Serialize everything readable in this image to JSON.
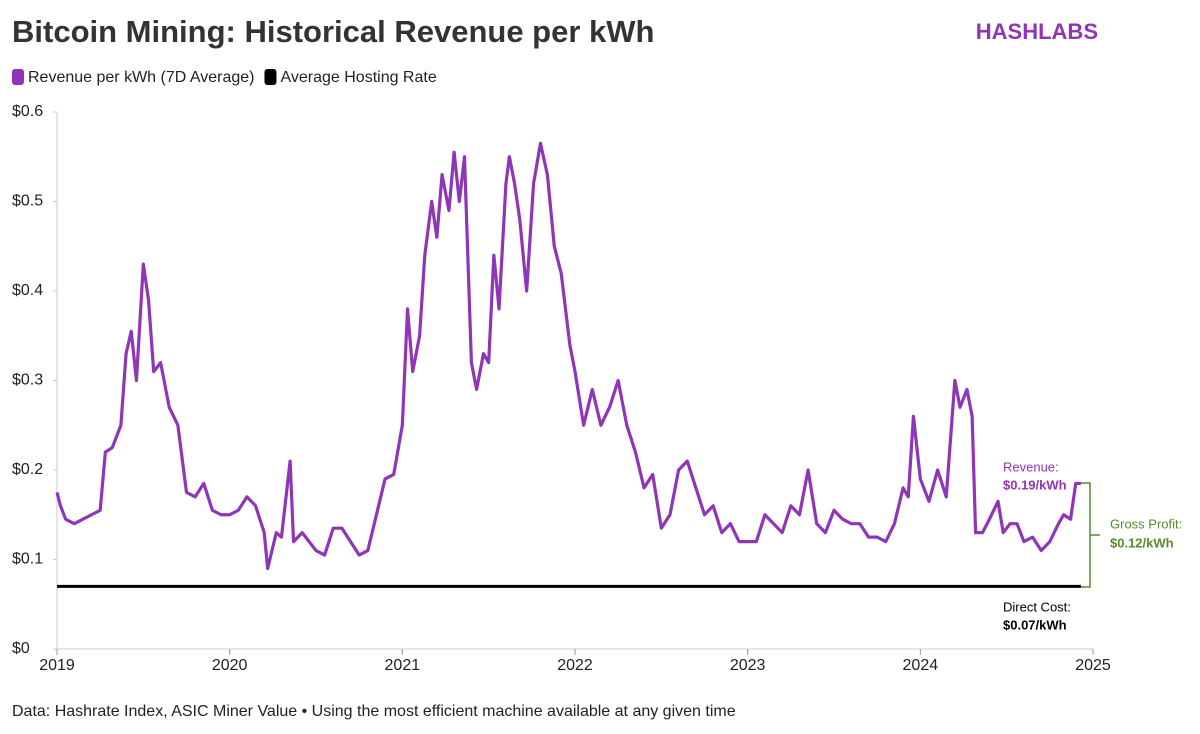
{
  "chart_data": {
    "type": "line",
    "title": "Bitcoin Mining: Historical Revenue per kWh",
    "brand": "HASHLABS",
    "source": "Data: Hashrate Index, ASIC Miner Value • Using the most efficient machine available at any given time",
    "xlim": [
      2019,
      2025
    ],
    "xticks": [
      2019,
      2020,
      2021,
      2022,
      2023,
      2024,
      2025
    ],
    "ylim": [
      0,
      0.6
    ],
    "yticks": [
      {
        "value": 0,
        "label": "$0"
      },
      {
        "value": 0.1,
        "label": "$0.1"
      },
      {
        "value": 0.2,
        "label": "$0.2"
      },
      {
        "value": 0.3,
        "label": "$0.3"
      },
      {
        "value": 0.4,
        "label": "$0.4"
      },
      {
        "value": 0.5,
        "label": "$0.5"
      },
      {
        "value": 0.6,
        "label": "$0.6"
      }
    ],
    "series": [
      {
        "name": "Revenue per kWh (7D Average)",
        "color": "#8e35b8",
        "x": [
          2019.0,
          2019.02,
          2019.05,
          2019.1,
          2019.15,
          2019.2,
          2019.25,
          2019.28,
          2019.32,
          2019.37,
          2019.4,
          2019.43,
          2019.46,
          2019.5,
          2019.53,
          2019.56,
          2019.6,
          2019.65,
          2019.7,
          2019.75,
          2019.8,
          2019.85,
          2019.9,
          2019.95,
          2020.0,
          2020.05,
          2020.1,
          2020.15,
          2020.2,
          2020.22,
          2020.27,
          2020.3,
          2020.35,
          2020.37,
          2020.42,
          2020.5,
          2020.55,
          2020.6,
          2020.65,
          2020.7,
          2020.75,
          2020.8,
          2020.85,
          2020.9,
          2020.95,
          2021.0,
          2021.03,
          2021.06,
          2021.1,
          2021.13,
          2021.17,
          2021.2,
          2021.23,
          2021.27,
          2021.3,
          2021.33,
          2021.36,
          2021.4,
          2021.43,
          2021.47,
          2021.5,
          2021.53,
          2021.56,
          2021.6,
          2021.62,
          2021.65,
          2021.68,
          2021.72,
          2021.76,
          2021.8,
          2021.84,
          2021.88,
          2021.92,
          2021.97,
          2022.0,
          2022.05,
          2022.1,
          2022.15,
          2022.2,
          2022.25,
          2022.3,
          2022.35,
          2022.4,
          2022.45,
          2022.5,
          2022.55,
          2022.6,
          2022.65,
          2022.7,
          2022.75,
          2022.8,
          2022.85,
          2022.9,
          2022.95,
          2023.0,
          2023.05,
          2023.1,
          2023.15,
          2023.2,
          2023.25,
          2023.3,
          2023.35,
          2023.4,
          2023.45,
          2023.5,
          2023.55,
          2023.6,
          2023.65,
          2023.7,
          2023.75,
          2023.8,
          2023.85,
          2023.9,
          2023.93,
          2023.96,
          2024.0,
          2024.05,
          2024.1,
          2024.15,
          2024.2,
          2024.23,
          2024.27,
          2024.3,
          2024.32,
          2024.36,
          2024.4,
          2024.45,
          2024.48,
          2024.52,
          2024.56,
          2024.6,
          2024.65,
          2024.7,
          2024.75,
          2024.8,
          2024.83,
          2024.87,
          2024.9,
          2024.93
        ],
        "values": [
          0.175,
          0.16,
          0.145,
          0.14,
          0.145,
          0.15,
          0.155,
          0.22,
          0.225,
          0.25,
          0.33,
          0.355,
          0.3,
          0.43,
          0.39,
          0.31,
          0.32,
          0.27,
          0.25,
          0.175,
          0.17,
          0.185,
          0.155,
          0.15,
          0.15,
          0.155,
          0.17,
          0.16,
          0.13,
          0.09,
          0.13,
          0.125,
          0.21,
          0.12,
          0.13,
          0.11,
          0.105,
          0.135,
          0.135,
          0.12,
          0.105,
          0.11,
          0.15,
          0.19,
          0.195,
          0.25,
          0.38,
          0.31,
          0.35,
          0.44,
          0.5,
          0.46,
          0.53,
          0.49,
          0.555,
          0.5,
          0.55,
          0.32,
          0.29,
          0.33,
          0.32,
          0.44,
          0.38,
          0.52,
          0.55,
          0.52,
          0.48,
          0.4,
          0.52,
          0.565,
          0.53,
          0.45,
          0.42,
          0.34,
          0.31,
          0.25,
          0.29,
          0.25,
          0.27,
          0.3,
          0.25,
          0.22,
          0.18,
          0.195,
          0.135,
          0.15,
          0.2,
          0.21,
          0.18,
          0.15,
          0.16,
          0.13,
          0.14,
          0.12,
          0.12,
          0.12,
          0.15,
          0.14,
          0.13,
          0.16,
          0.15,
          0.2,
          0.14,
          0.13,
          0.155,
          0.145,
          0.14,
          0.14,
          0.125,
          0.125,
          0.12,
          0.14,
          0.18,
          0.17,
          0.26,
          0.19,
          0.165,
          0.2,
          0.17,
          0.3,
          0.27,
          0.29,
          0.26,
          0.13,
          0.13,
          0.145,
          0.165,
          0.13,
          0.14,
          0.14,
          0.12,
          0.125,
          0.11,
          0.12,
          0.14,
          0.15,
          0.145,
          0.185,
          0.185
        ]
      },
      {
        "name": "Average Hosting Rate",
        "color": "#000000",
        "x": [
          2019.0,
          2024.93
        ],
        "values": [
          0.07,
          0.07
        ]
      }
    ],
    "annotations": [
      {
        "label": "Revenue:",
        "value": "$0.19/kWh"
      },
      {
        "label": "Gross Profit:",
        "value": "$0.12/kWh"
      },
      {
        "label": "Direct Cost:",
        "value": "$0.07/kWh"
      }
    ]
  }
}
